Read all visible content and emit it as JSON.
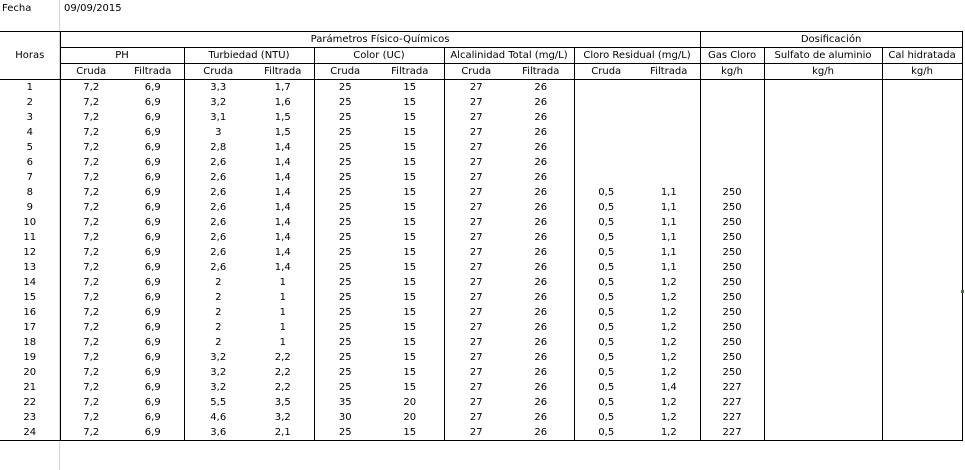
{
  "fecha": {
    "label": "Fecha",
    "value": "09/09/2015"
  },
  "headers": {
    "horas": "Horas",
    "group_params": "Parámetros Físico-Químicos",
    "group_dosing": "Dosificación",
    "params": [
      "PH",
      "Turbiedad (NTU)",
      "Color (UC)",
      "Alcalinidad Total (mg/L)",
      "Cloro Residual (mg/L)"
    ],
    "dosing": [
      "Gas Cloro",
      "Sulfato de aluminio",
      "Cal hidratada"
    ],
    "sub_cruda": "Cruda",
    "sub_filtrada": "Filtrada",
    "unit": "kg/h"
  },
  "rows": [
    [
      "1",
      "7,2",
      "6,9",
      "3,3",
      "1,7",
      "25",
      "15",
      "27",
      "26",
      "",
      "",
      "",
      "",
      ""
    ],
    [
      "2",
      "7,2",
      "6,9",
      "3,2",
      "1,6",
      "25",
      "15",
      "27",
      "26",
      "",
      "",
      "",
      "",
      ""
    ],
    [
      "3",
      "7,2",
      "6,9",
      "3,1",
      "1,5",
      "25",
      "15",
      "27",
      "26",
      "",
      "",
      "",
      "",
      ""
    ],
    [
      "4",
      "7,2",
      "6,9",
      "3",
      "1,5",
      "25",
      "15",
      "27",
      "26",
      "",
      "",
      "",
      "",
      ""
    ],
    [
      "5",
      "7,2",
      "6,9",
      "2,8",
      "1,4",
      "25",
      "15",
      "27",
      "26",
      "",
      "",
      "",
      "",
      ""
    ],
    [
      "6",
      "7,2",
      "6,9",
      "2,6",
      "1,4",
      "25",
      "15",
      "27",
      "26",
      "",
      "",
      "",
      "",
      ""
    ],
    [
      "7",
      "7,2",
      "6,9",
      "2,6",
      "1,4",
      "25",
      "15",
      "27",
      "26",
      "",
      "",
      "",
      "",
      ""
    ],
    [
      "8",
      "7,2",
      "6,9",
      "2,6",
      "1,4",
      "25",
      "15",
      "27",
      "26",
      "0,5",
      "1,1",
      "250",
      "",
      ""
    ],
    [
      "9",
      "7,2",
      "6,9",
      "2,6",
      "1,4",
      "25",
      "15",
      "27",
      "26",
      "0,5",
      "1,1",
      "250",
      "",
      ""
    ],
    [
      "10",
      "7,2",
      "6,9",
      "2,6",
      "1,4",
      "25",
      "15",
      "27",
      "26",
      "0,5",
      "1,1",
      "250",
      "",
      ""
    ],
    [
      "11",
      "7,2",
      "6,9",
      "2,6",
      "1,4",
      "25",
      "15",
      "27",
      "26",
      "0,5",
      "1,1",
      "250",
      "",
      ""
    ],
    [
      "12",
      "7,2",
      "6,9",
      "2,6",
      "1,4",
      "25",
      "15",
      "27",
      "26",
      "0,5",
      "1,1",
      "250",
      "",
      ""
    ],
    [
      "13",
      "7,2",
      "6,9",
      "2,6",
      "1,4",
      "25",
      "15",
      "27",
      "26",
      "0,5",
      "1,1",
      "250",
      "",
      ""
    ],
    [
      "14",
      "7,2",
      "6,9",
      "2",
      "1",
      "25",
      "15",
      "27",
      "26",
      "0,5",
      "1,2",
      "250",
      "",
      ""
    ],
    [
      "15",
      "7,2",
      "6,9",
      "2",
      "1",
      "25",
      "15",
      "27",
      "26",
      "0,5",
      "1,2",
      "250",
      "",
      ""
    ],
    [
      "16",
      "7,2",
      "6,9",
      "2",
      "1",
      "25",
      "15",
      "27",
      "26",
      "0,5",
      "1,2",
      "250",
      "",
      ""
    ],
    [
      "17",
      "7,2",
      "6,9",
      "2",
      "1",
      "25",
      "15",
      "27",
      "26",
      "0,5",
      "1,2",
      "250",
      "",
      ""
    ],
    [
      "18",
      "7,2",
      "6,9",
      "2",
      "1",
      "25",
      "15",
      "27",
      "26",
      "0,5",
      "1,2",
      "250",
      "",
      ""
    ],
    [
      "19",
      "7,2",
      "6,9",
      "3,2",
      "2,2",
      "25",
      "15",
      "27",
      "26",
      "0,5",
      "1,2",
      "250",
      "",
      ""
    ],
    [
      "20",
      "7,2",
      "6,9",
      "3,2",
      "2,2",
      "25",
      "15",
      "27",
      "26",
      "0,5",
      "1,2",
      "250",
      "",
      ""
    ],
    [
      "21",
      "7,2",
      "6,9",
      "3,2",
      "2,2",
      "25",
      "15",
      "27",
      "26",
      "0,5",
      "1,4",
      "227",
      "",
      ""
    ],
    [
      "22",
      "7,2",
      "6,9",
      "5,5",
      "3,5",
      "35",
      "20",
      "27",
      "26",
      "0,5",
      "1,2",
      "227",
      "",
      ""
    ],
    [
      "23",
      "7,2",
      "6,9",
      "4,6",
      "3,2",
      "30",
      "20",
      "27",
      "26",
      "0,5",
      "1,2",
      "227",
      "",
      ""
    ],
    [
      "24",
      "7,2",
      "6,9",
      "3,6",
      "2,1",
      "25",
      "15",
      "27",
      "26",
      "0,5",
      "1,2",
      "227",
      "",
      ""
    ]
  ]
}
